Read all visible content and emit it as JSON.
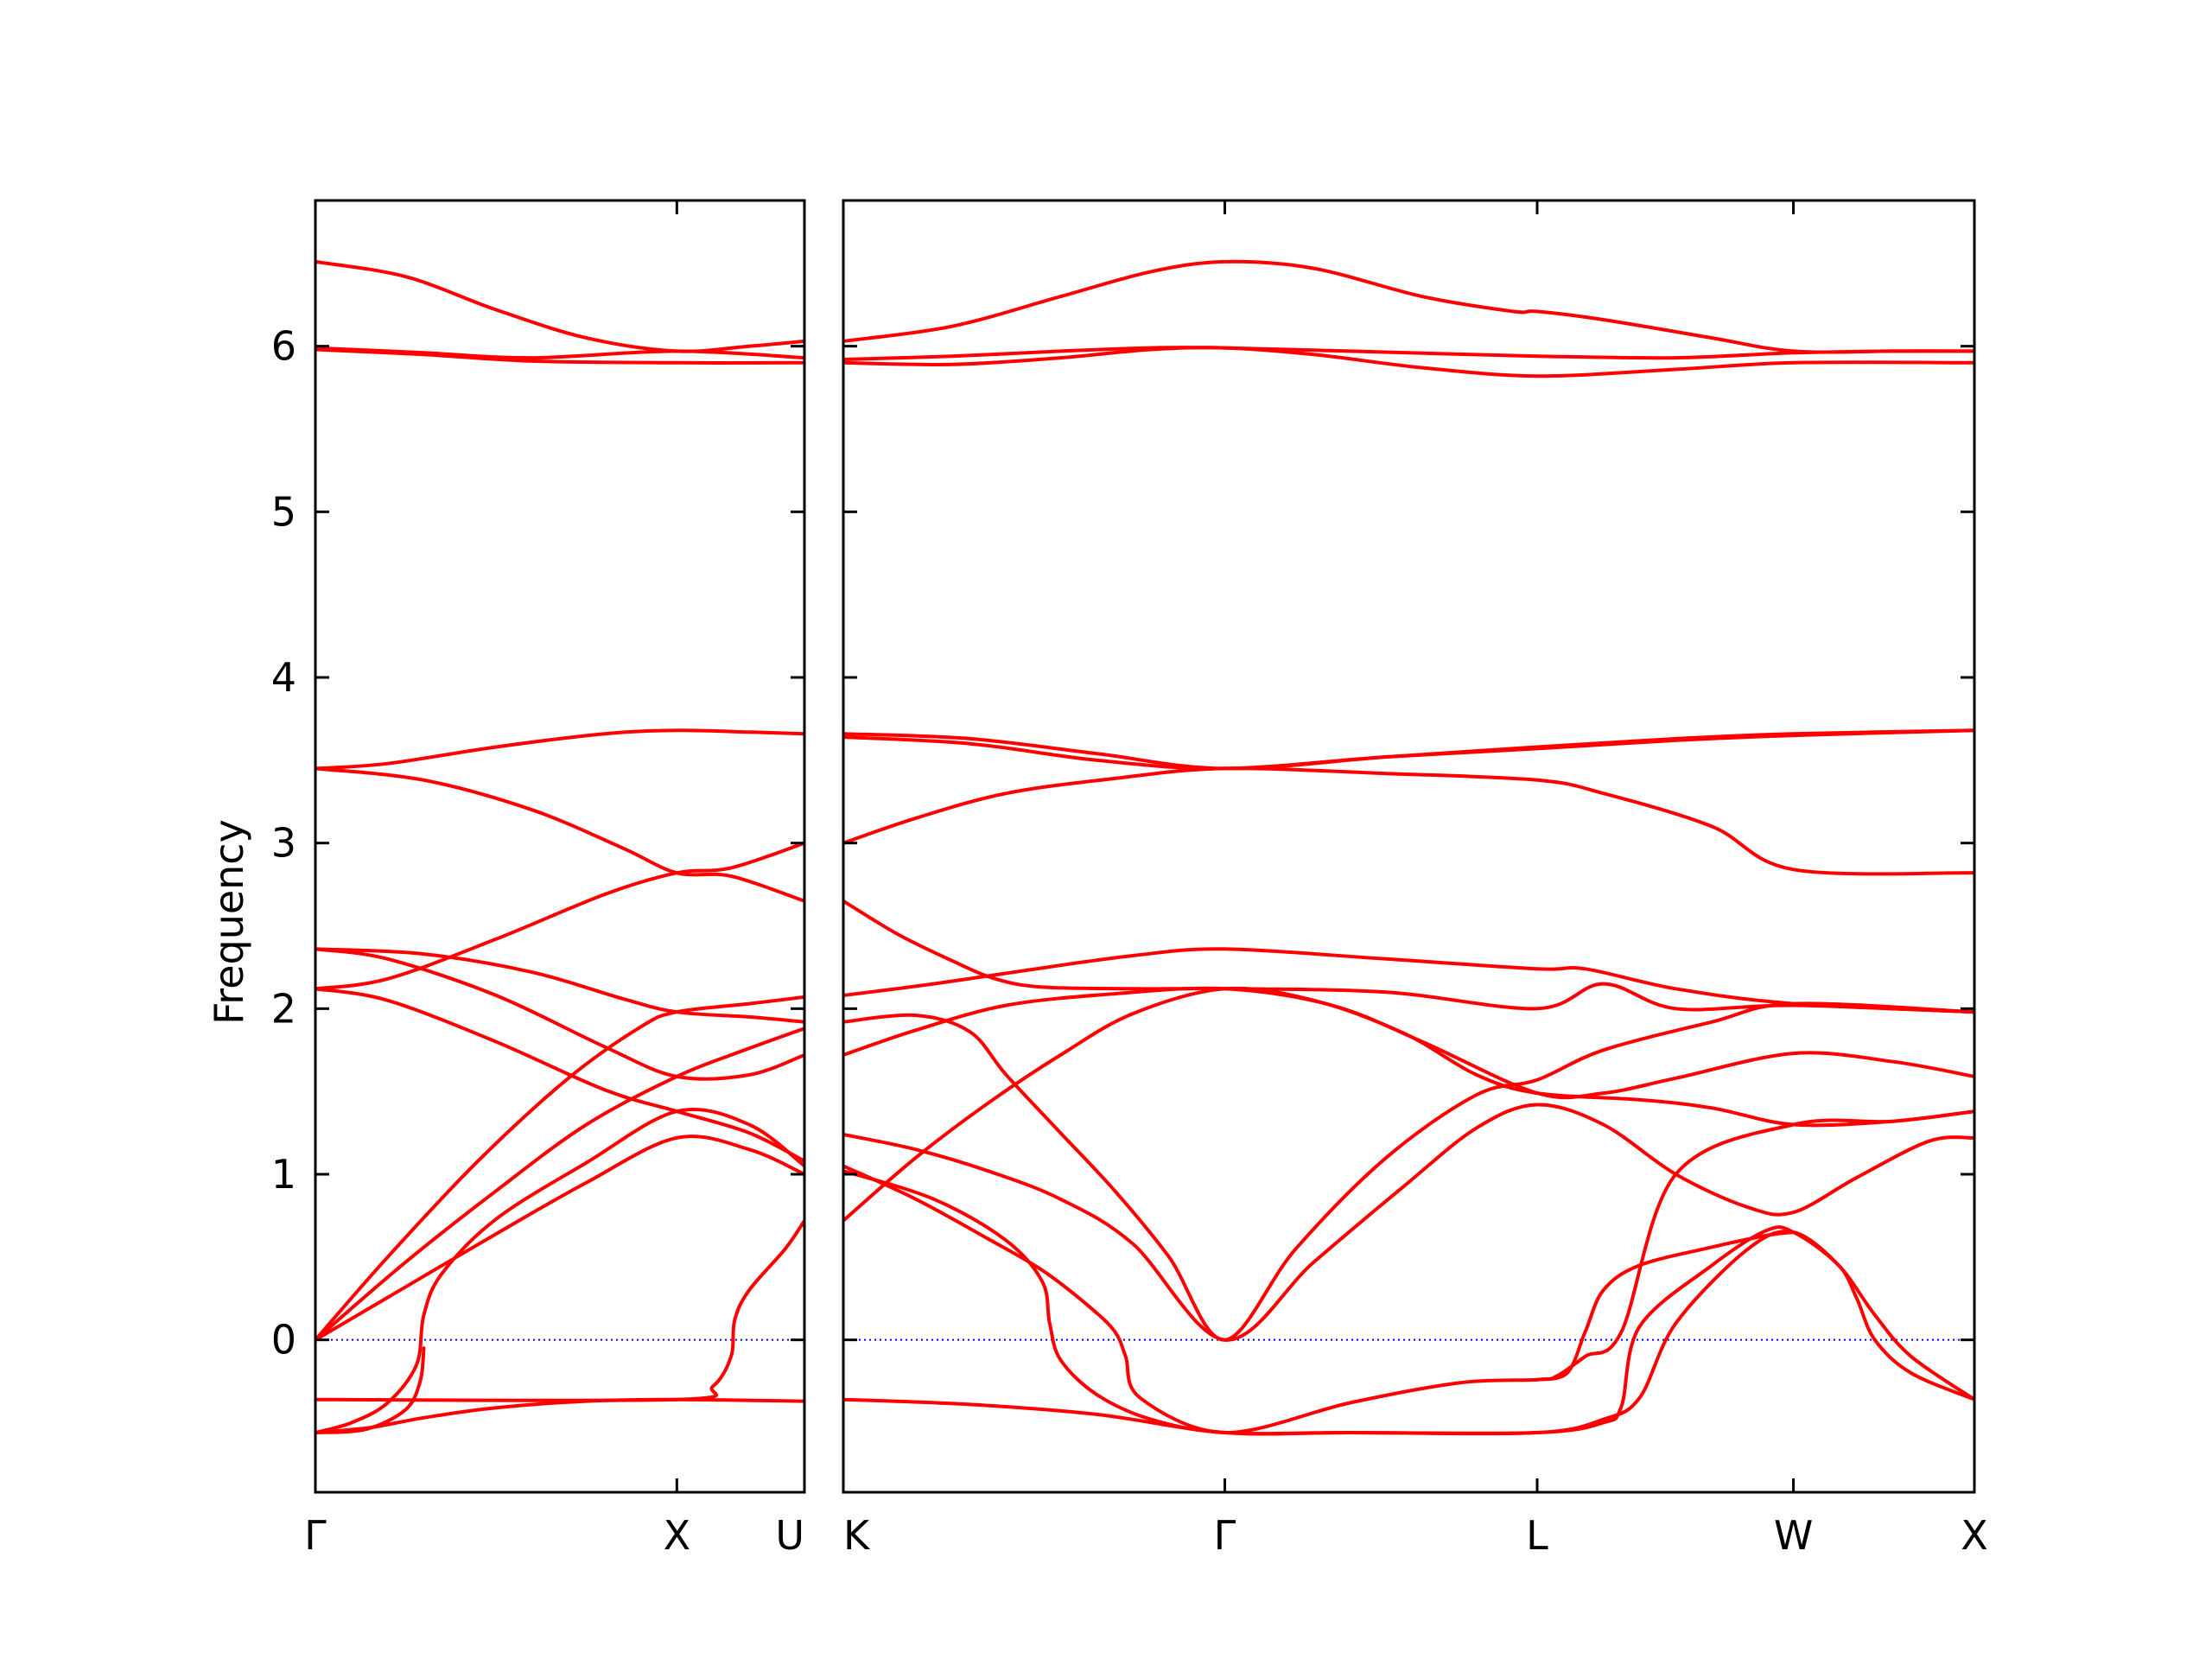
{
  "chart_data": {
    "type": "line",
    "ylabel": "Frequency",
    "ylim": [
      -0.92,
      6.88
    ],
    "yticks": [
      0,
      1,
      2,
      3,
      4,
      5,
      6
    ],
    "ytick_labels": [
      "0",
      "1",
      "2",
      "3",
      "4",
      "5",
      "6"
    ],
    "colors": {
      "bands": "#ff0000",
      "zero_line": "#0000ff",
      "frame": "#000000"
    },
    "panels": [
      {
        "id": "panel-1",
        "xlim": [
          0,
          1.353
        ],
        "ticks": [
          {
            "x": 0,
            "label": "Γ"
          },
          {
            "x": 1.0,
            "label": "X"
          },
          {
            "x": 1.353,
            "label": "U"
          }
        ],
        "bands": [
          {
            "name": "band-1",
            "x": [
              0,
              0.25,
              0.5,
              0.75,
              1.0,
              1.2,
              1.353
            ],
            "y": [
              6.51,
              6.42,
              6.22,
              6.05,
              5.97,
              6.0,
              6.03
            ]
          },
          {
            "name": "band-2",
            "x": [
              0,
              0.3,
              0.6,
              1.0,
              1.353
            ],
            "y": [
              5.99,
              5.96,
              5.93,
              5.97,
              5.93
            ]
          },
          {
            "name": "band-3",
            "x": [
              0,
              0.3,
              0.6,
              1.0,
              1.353
            ],
            "y": [
              5.98,
              5.95,
              5.91,
              5.9,
              5.9
            ]
          },
          {
            "name": "band-4",
            "x": [
              0,
              0.2,
              0.5,
              0.8,
              1.0,
              1.2,
              1.353
            ],
            "y": [
              3.45,
              3.48,
              3.58,
              3.66,
              3.68,
              3.67,
              3.66
            ]
          },
          {
            "name": "band-5",
            "x": [
              0,
              0.3,
              0.6,
              0.85,
              1.0,
              1.15,
              1.353
            ],
            "y": [
              3.45,
              3.38,
              3.2,
              2.97,
              2.82,
              2.8,
              2.65
            ]
          },
          {
            "name": "band-6",
            "x": [
              0,
              0.2,
              0.5,
              0.8,
              1.0,
              1.15,
              1.353
            ],
            "y": [
              2.12,
              2.18,
              2.42,
              2.69,
              2.82,
              2.85,
              3.0
            ]
          },
          {
            "name": "band-7",
            "x": [
              0,
              0.3,
              0.6,
              0.85,
              1.0,
              1.2,
              1.353
            ],
            "y": [
              2.36,
              2.33,
              2.22,
              2.06,
              1.98,
              1.95,
              1.92
            ]
          },
          {
            "name": "band-8",
            "x": [
              0,
              0.2,
              0.5,
              0.8,
              1.0,
              1.2,
              1.353
            ],
            "y": [
              2.36,
              2.3,
              2.08,
              1.77,
              1.59,
              1.6,
              1.72
            ]
          },
          {
            "name": "band-9",
            "x": [
              0,
              0.2,
              0.5,
              0.8,
              1.0,
              1.2,
              1.353
            ],
            "y": [
              2.12,
              2.05,
              1.8,
              1.51,
              1.38,
              1.25,
              1.08
            ]
          },
          {
            "name": "band-10",
            "x": [
              0,
              0.2,
              0.45,
              0.7,
              0.9,
              1.0,
              1.2,
              1.353
            ],
            "y": [
              0.0,
              0.5,
              1.08,
              1.58,
              1.89,
              1.98,
              2.03,
              2.07
            ]
          },
          {
            "name": "band-11",
            "x": [
              0,
              0.25,
              0.5,
              0.75,
              1.0,
              1.2,
              1.353
            ],
            "y": [
              0.0,
              0.47,
              0.9,
              1.3,
              1.59,
              1.76,
              1.88
            ]
          },
          {
            "name": "band-12",
            "x": [
              0,
              0.25,
              0.5,
              0.75,
              1.0,
              1.2,
              1.353
            ],
            "y": [
              0.0,
              0.32,
              0.64,
              0.95,
              1.22,
              1.15,
              1.0
            ]
          },
          {
            "name": "band-13",
            "x": [
              0,
              0.1,
              0.2,
              0.28,
              0.3,
              0.35,
              0.5,
              0.75,
              1.0,
              1.2,
              1.353
            ],
            "y": [
              -0.56,
              -0.5,
              -0.38,
              -0.15,
              0.15,
              0.4,
              0.73,
              1.07,
              1.38,
              1.3,
              1.05
            ]
          },
          {
            "name": "band-14",
            "x": [
              0,
              0.15,
              0.3,
              0.5,
              0.75,
              1.0,
              1.353
            ],
            "y": [
              -0.56,
              -0.53,
              -0.47,
              -0.41,
              -0.37,
              -0.36,
              -0.37
            ]
          },
          {
            "name": "band-15",
            "x": [
              0,
              1.0,
              1.1,
              1.15,
              1.16,
              1.2,
              1.3,
              1.353
            ],
            "y": [
              -0.36,
              -0.36,
              -0.28,
              -0.1,
              0.12,
              0.3,
              0.55,
              0.72
            ]
          },
          {
            "name": "band-16",
            "x": [
              0,
              0.14,
              0.25,
              0.29,
              0.3
            ],
            "y": [
              -0.56,
              -0.54,
              -0.42,
              -0.25,
              -0.05
            ]
          }
        ]
      },
      {
        "id": "panel-2",
        "xlim": [
          0,
          3.125
        ],
        "ticks": [
          {
            "x": 0,
            "label": "K"
          },
          {
            "x": 1.054,
            "label": "Γ"
          },
          {
            "x": 1.917,
            "label": "L"
          },
          {
            "x": 2.625,
            "label": "W"
          },
          {
            "x": 3.125,
            "label": "X"
          }
        ],
        "bands": [
          {
            "name": "band-1",
            "x": [
              0,
              0.3,
              0.6,
              0.85,
              1.054,
              1.3,
              1.6,
              1.85,
              1.917,
              2.1,
              2.4,
              2.625,
              2.9,
              3.125
            ],
            "y": [
              6.03,
              6.12,
              6.3,
              6.45,
              6.51,
              6.47,
              6.3,
              6.21,
              6.21,
              6.16,
              6.05,
              5.97,
              5.97,
              5.97
            ]
          },
          {
            "name": "band-2",
            "x": [
              0,
              0.3,
              0.6,
              0.85,
              1.054,
              1.4,
              1.917,
              2.3,
              2.625,
              2.9,
              3.125
            ],
            "y": [
              5.92,
              5.94,
              5.97,
              5.99,
              5.99,
              5.97,
              5.94,
              5.93,
              5.96,
              5.97,
              5.97
            ]
          },
          {
            "name": "band-3",
            "x": [
              0,
              0.3,
              0.6,
              0.85,
              1.054,
              1.3,
              1.6,
              1.917,
              2.3,
              2.625,
              3.125
            ],
            "y": [
              5.9,
              5.89,
              5.93,
              5.98,
              5.99,
              5.95,
              5.87,
              5.82,
              5.86,
              5.9,
              5.9
            ]
          },
          {
            "name": "band-4",
            "x": [
              0,
              0.35,
              0.7,
              1.054,
              1.5,
              1.917,
              2.3,
              2.625,
              3.125
            ],
            "y": [
              3.66,
              3.63,
              3.54,
              3.45,
              3.52,
              3.58,
              3.63,
              3.66,
              3.68
            ]
          },
          {
            "name": "band-5",
            "x": [
              0,
              0.35,
              0.7,
              1.054,
              1.5,
              1.917,
              2.3,
              2.625,
              3.125
            ],
            "y": [
              3.64,
              3.6,
              3.5,
              3.45,
              3.52,
              3.57,
              3.62,
              3.65,
              3.68
            ]
          },
          {
            "name": "band-6",
            "x": [
              0,
              0.2,
              0.45,
              0.75,
              1.054,
              1.5,
              1.917,
              2.1,
              2.4,
              2.625,
              3.125
            ],
            "y": [
              3.0,
              3.15,
              3.3,
              3.39,
              3.45,
              3.42,
              3.38,
              3.3,
              3.1,
              2.84,
              2.82
            ]
          },
          {
            "name": "band-7",
            "x": [
              0,
              0.15,
              0.3,
              0.42,
              0.55,
              0.8,
              1.054,
              1.5,
              1.917,
              2.1,
              2.3,
              2.625,
              3.125
            ],
            "y": [
              2.65,
              2.45,
              2.29,
              2.18,
              2.13,
              2.12,
              2.12,
              2.1,
              2.0,
              2.15,
              2.0,
              2.02,
              1.98
            ]
          },
          {
            "name": "band-8",
            "x": [
              0,
              0.25,
              0.5,
              0.8,
              1.054,
              1.5,
              1.917,
              2.05,
              2.3,
              2.625,
              3.125
            ],
            "y": [
              2.08,
              2.15,
              2.23,
              2.32,
              2.36,
              2.3,
              2.24,
              2.24,
              2.12,
              2.03,
              1.98
            ]
          },
          {
            "name": "band-9",
            "x": [
              0,
              0.2,
              0.35,
              0.45,
              0.6,
              0.75,
              0.9,
              1.054,
              1.25,
              1.5,
              1.75,
              1.917,
              2.1,
              2.4,
              2.625,
              3.125
            ],
            "y": [
              1.92,
              1.96,
              1.86,
              1.6,
              1.25,
              0.9,
              0.5,
              0.0,
              0.55,
              1.1,
              1.48,
              1.57,
              1.75,
              1.92,
              2.03,
              1.98
            ]
          },
          {
            "name": "band-10",
            "x": [
              0,
              0.2,
              0.45,
              0.75,
              1.054,
              1.35,
              1.6,
              1.917,
              2.1,
              2.3,
              2.625,
              2.9,
              3.125
            ],
            "y": [
              1.72,
              1.87,
              2.02,
              2.09,
              2.12,
              2.02,
              1.8,
              1.49,
              1.49,
              1.58,
              1.73,
              1.68,
              1.59
            ]
          },
          {
            "name": "band-11",
            "x": [
              0,
              0.2,
              0.4,
              0.6,
              0.8,
              1.054,
              1.3,
              1.55,
              1.75,
              1.917,
              2.2,
              2.4,
              2.625,
              2.9,
              3.125
            ],
            "y": [
              0.72,
              1.1,
              1.43,
              1.72,
              1.97,
              2.12,
              2.05,
              1.85,
              1.6,
              1.49,
              1.45,
              1.4,
              1.3,
              1.32,
              1.38
            ]
          },
          {
            "name": "band-12",
            "x": [
              0,
              0.2,
              0.4,
              0.6,
              0.8,
              1.054,
              1.3,
              1.55,
              1.75,
              1.917,
              2.1,
              2.3,
              2.5,
              2.625,
              2.8,
              3.0,
              3.125
            ],
            "y": [
              1.24,
              1.15,
              1.02,
              0.85,
              0.58,
              0.0,
              0.47,
              0.93,
              1.28,
              1.42,
              1.3,
              1.0,
              0.8,
              0.77,
              0.98,
              1.2,
              1.22
            ]
          },
          {
            "name": "band-13",
            "x": [
              0,
              0.2,
              0.4,
              0.55,
              0.68,
              0.75,
              0.78,
              0.82,
              1.054,
              1.4,
              1.7,
              1.917,
              1.97,
              2.05,
              2.15,
              2.3,
              2.625,
              2.9,
              3.125
            ],
            "y": [
              1.05,
              0.85,
              0.61,
              0.42,
              0.2,
              0.05,
              -0.1,
              -0.35,
              -0.56,
              -0.38,
              -0.26,
              -0.24,
              -0.22,
              -0.1,
              0.05,
              1.0,
              1.3,
              1.32,
              1.38
            ]
          },
          {
            "name": "band-14",
            "x": [
              0,
              0.25,
              0.45,
              0.55,
              0.57,
              0.6,
              0.7,
              0.85,
              1.054,
              1.4,
              1.917,
              2.1,
              2.2,
              2.3,
              2.5,
              2.625,
              2.75,
              2.8,
              2.85,
              2.95,
              3.125
            ],
            "y": [
              1.02,
              0.85,
              0.6,
              0.35,
              0.1,
              -0.12,
              -0.33,
              -0.48,
              -0.56,
              -0.56,
              -0.56,
              -0.48,
              -0.35,
              0.1,
              0.55,
              0.65,
              0.45,
              0.25,
              0.0,
              -0.2,
              -0.36
            ]
          },
          {
            "name": "band-15",
            "x": [
              0,
              0.35,
              0.7,
              1.054,
              1.4,
              1.917,
              2.1,
              2.15,
              2.2,
              2.4,
              2.55,
              2.625,
              2.75,
              2.85,
              2.95,
              3.125
            ],
            "y": [
              -0.36,
              -0.39,
              -0.45,
              -0.56,
              -0.56,
              -0.56,
              -0.5,
              -0.4,
              0.08,
              0.45,
              0.66,
              0.65,
              0.45,
              0.15,
              -0.1,
              -0.36
            ]
          },
          {
            "name": "band-16",
            "x": [
              1.917,
              2.0,
              2.05,
              2.1,
              2.2,
              2.4,
              2.55,
              2.625
            ],
            "y": [
              -0.24,
              -0.2,
              0.05,
              0.3,
              0.45,
              0.56,
              0.63,
              0.65
            ]
          }
        ]
      }
    ]
  }
}
